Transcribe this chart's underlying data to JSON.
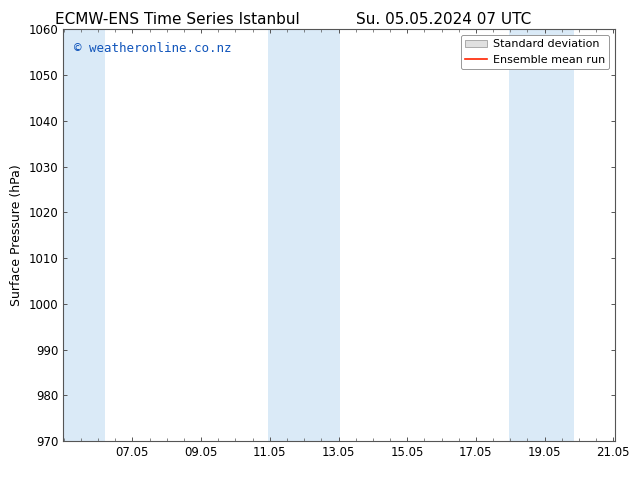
{
  "title_left": "ECMW-ENS Time Series Istanbul",
  "title_right": "Su. 05.05.2024 07 UTC",
  "ylabel": "Surface Pressure (hPa)",
  "ylim": [
    970,
    1060
  ],
  "yticks": [
    970,
    980,
    990,
    1000,
    1010,
    1020,
    1030,
    1040,
    1050,
    1060
  ],
  "xlim_start": 5.04,
  "xlim_end": 21.1,
  "xtick_labels": [
    "07.05",
    "09.05",
    "11.05",
    "13.05",
    "15.05",
    "17.05",
    "19.05",
    "21.05"
  ],
  "xtick_positions": [
    7.05,
    9.05,
    11.05,
    13.05,
    15.05,
    17.05,
    19.05,
    21.05
  ],
  "shaded_bands": [
    {
      "x_start": 5.04,
      "x_end": 6.25
    },
    {
      "x_start": 11.0,
      "x_end": 13.1
    },
    {
      "x_start": 18.0,
      "x_end": 19.9
    }
  ],
  "shade_color": "#daeaf7",
  "background_color": "#ffffff",
  "watermark_text": "© weatheronline.co.nz",
  "watermark_color": "#1155bb",
  "legend_std_label": "Standard deviation",
  "legend_mean_label": "Ensemble mean run",
  "legend_std_facecolor": "#e0e0e0",
  "legend_std_edgecolor": "#aaaaaa",
  "legend_mean_color": "#ff2200",
  "title_fontsize": 11,
  "axis_label_fontsize": 9,
  "tick_fontsize": 8.5,
  "watermark_fontsize": 9,
  "fig_bg_color": "#ffffff",
  "spine_color": "#555555",
  "legend_fontsize": 8
}
